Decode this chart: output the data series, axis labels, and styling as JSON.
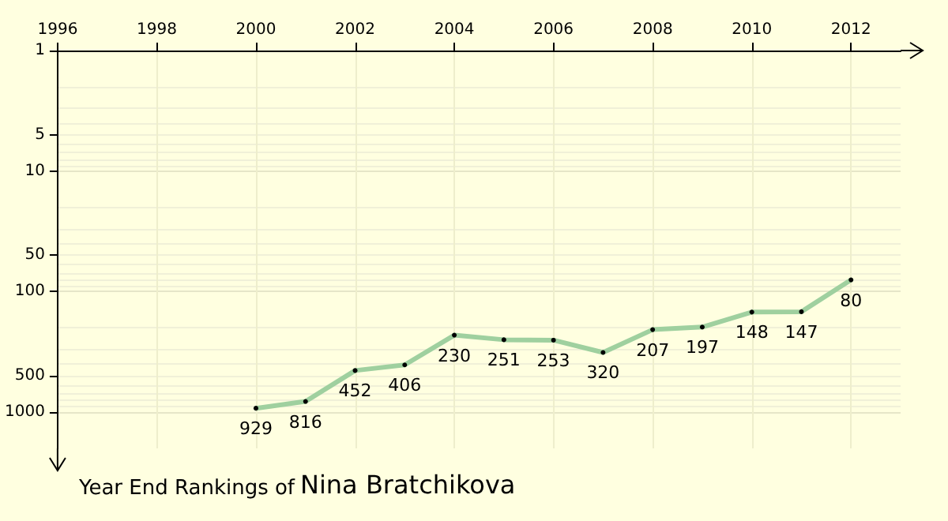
{
  "chart_data": {
    "type": "line",
    "title": "Year End Rankings of",
    "subtitle": "Nina Bratchikova",
    "x": [
      2000,
      2001,
      2002,
      2003,
      2004,
      2005,
      2006,
      2007,
      2008,
      2009,
      2010,
      2011,
      2012
    ],
    "series": [
      {
        "color": "#9fd09f",
        "values": [
          929,
          816,
          452,
          406,
          230,
          251,
          253,
          320,
          207,
          197,
          148,
          147,
          80
        ]
      }
    ],
    "xlim": [
      1996,
      2013
    ],
    "xticks": [
      1996,
      1998,
      2000,
      2002,
      2004,
      2006,
      2008,
      2010,
      2012
    ],
    "ylim": [
      2000,
      1
    ],
    "yticks": [
      1,
      5,
      10,
      50,
      100,
      500,
      1000
    ],
    "log": "y",
    "grid": true,
    "marker": "circle",
    "line_style": "solid",
    "data_labels": true
  }
}
